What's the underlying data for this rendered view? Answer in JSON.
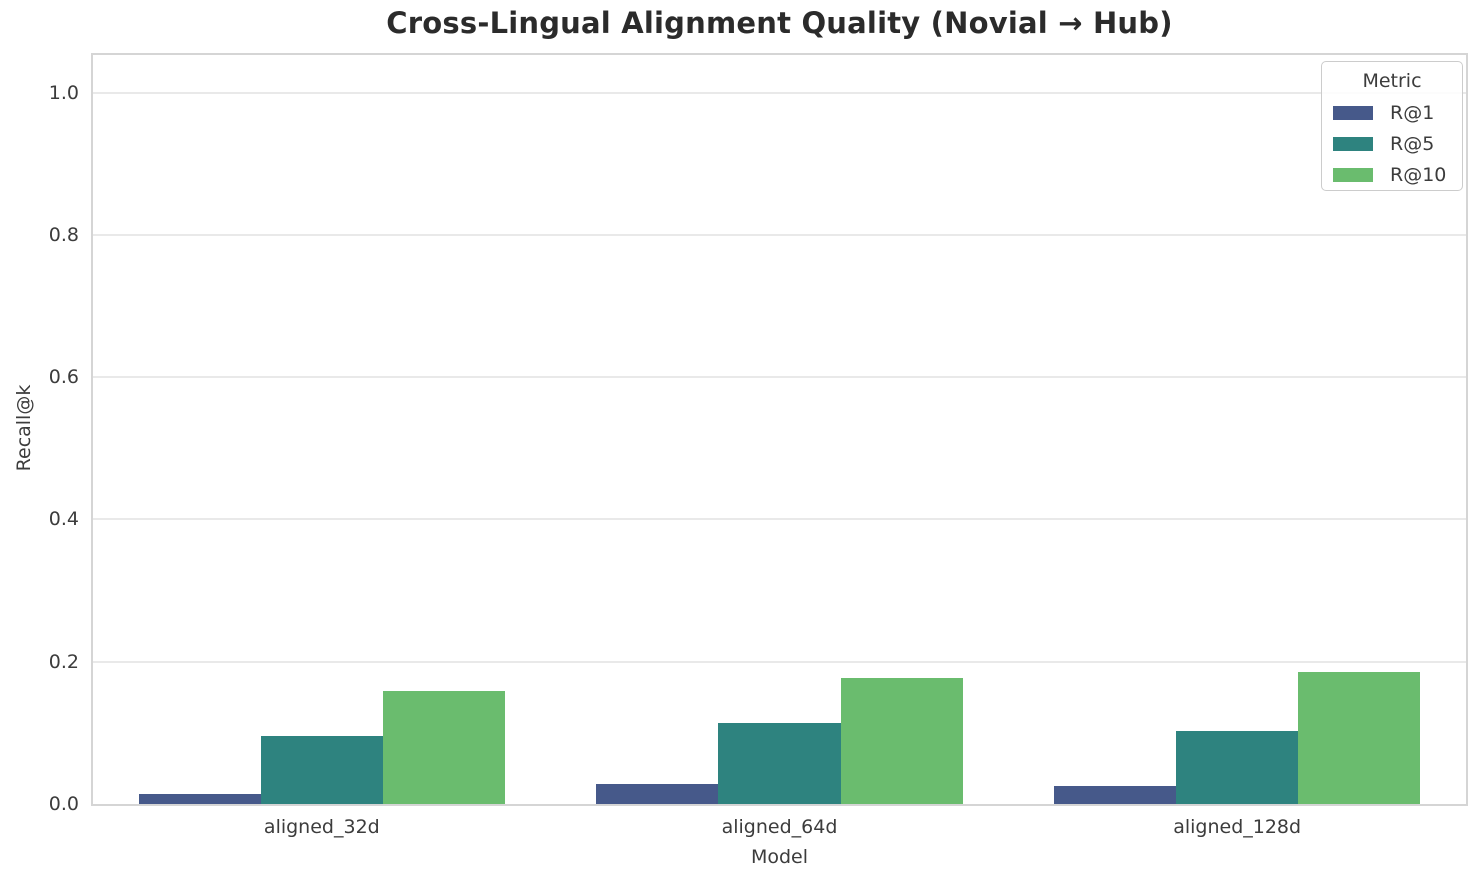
{
  "chart_data": {
    "type": "bar",
    "title": "Cross-Lingual Alignment Quality (Novial → Hub)",
    "xlabel": "Model",
    "ylabel": "Recall@k",
    "categories": [
      "aligned_32d",
      "aligned_64d",
      "aligned_128d"
    ],
    "series": [
      {
        "name": "R@1",
        "color": "#46598a",
        "values": [
          0.014,
          0.028,
          0.026
        ]
      },
      {
        "name": "R@5",
        "color": "#2e837f",
        "values": [
          0.095,
          0.114,
          0.103
        ]
      },
      {
        "name": "R@10",
        "color": "#6abc6e",
        "values": [
          0.159,
          0.177,
          0.185
        ]
      }
    ],
    "ytick_labels": [
      "0.0",
      "0.2",
      "0.4",
      "0.6",
      "0.8",
      "1.0"
    ],
    "ylim": [
      0,
      1.053
    ],
    "legend_title": "Metric",
    "legend_position": "upper right",
    "grid": true,
    "colors": {
      "grid": "#e9e9e9",
      "spine": "#d5d5d5",
      "text": "#3c3c3c",
      "title_text": "#2b2b2b",
      "background": "#ffffff"
    }
  }
}
